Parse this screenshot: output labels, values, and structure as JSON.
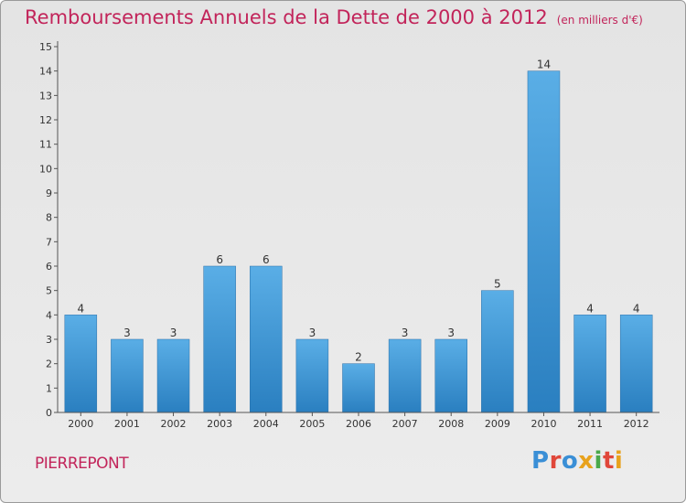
{
  "header": {
    "title": "Remboursements Annuels de la Dette de 2000 à 2012",
    "unit": "(en milliers d'€)"
  },
  "footer": {
    "commune": "PIERREPONT",
    "brand": "Proxiti"
  },
  "colors": {
    "title": "#c2245a",
    "bar_top": "#5aaee6",
    "bar_bottom": "#2a7fc0",
    "background": "#e8e8e8",
    "brand_letters": [
      "#3a8fd6",
      "#e0473a",
      "#3a8fd6",
      "#e8a21c",
      "#4aa84a",
      "#e0473a",
      "#e8a21c"
    ]
  },
  "chart_data": {
    "type": "bar",
    "title": "Remboursements Annuels de la Dette de 2000 à 2012",
    "subtitle": "(en milliers d'€)",
    "xlabel": "",
    "ylabel": "",
    "categories": [
      "2000",
      "2001",
      "2002",
      "2003",
      "2004",
      "2005",
      "2006",
      "2007",
      "2008",
      "2009",
      "2010",
      "2011",
      "2012"
    ],
    "values": [
      4,
      3,
      3,
      6,
      6,
      3,
      2,
      3,
      3,
      5,
      14,
      4,
      4
    ],
    "ylim": [
      0,
      15
    ],
    "yticks": [
      "0",
      "1",
      "2",
      "3",
      "4",
      "5",
      "6",
      "7",
      "8",
      "9",
      "10",
      "11",
      "12",
      "13",
      "14",
      "15"
    ],
    "grid": false,
    "legend": "none"
  }
}
